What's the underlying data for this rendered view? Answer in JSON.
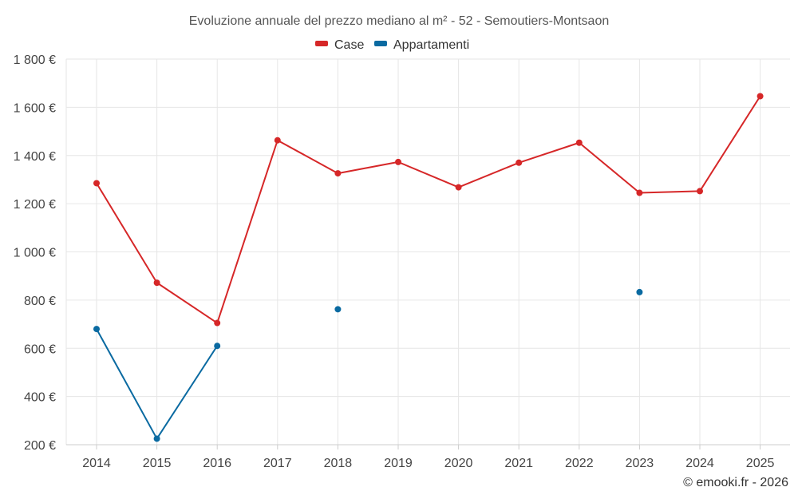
{
  "chart_data": {
    "type": "line",
    "title": "Evoluzione annuale del prezzo mediano al m² - 52 - Semoutiers-Montsaon",
    "categories": [
      "2014",
      "2015",
      "2016",
      "2017",
      "2018",
      "2019",
      "2020",
      "2021",
      "2022",
      "2023",
      "2024",
      "2025"
    ],
    "ylim": [
      200,
      1800
    ],
    "yticks": [
      200,
      400,
      600,
      800,
      1000,
      1200,
      1400,
      1600,
      1800
    ],
    "ytick_labels": [
      "200 €",
      "400 €",
      "600 €",
      "800 €",
      "1 000 €",
      "1 200 €",
      "1 400 €",
      "1 600 €",
      "1 800 €"
    ],
    "legend_position": "top-center",
    "grid": true,
    "series": [
      {
        "name": "Case",
        "color": "#d62728",
        "values": [
          1285,
          872,
          705,
          1463,
          1326,
          1373,
          1268,
          1370,
          1453,
          1245,
          1252,
          1646
        ]
      },
      {
        "name": "Appartamenti",
        "color": "#0a6aa1",
        "values": [
          680,
          225,
          610,
          null,
          762,
          null,
          null,
          null,
          null,
          833,
          null,
          null
        ]
      }
    ],
    "credit": "© emooki.fr - 2026"
  }
}
